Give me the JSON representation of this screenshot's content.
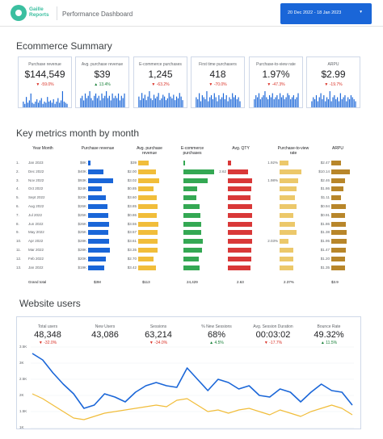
{
  "header": {
    "logo_line1": "Gaille",
    "logo_line2": "Reports",
    "title": "Performance Dashboard",
    "date_range": "20 Dec 2022 - 18 Jan 2023"
  },
  "ecommerce": {
    "title": "Ecommerce Summary",
    "kpis": [
      {
        "label": "Purchase revenue",
        "value": "$144,549",
        "delta": "-59.0%",
        "dir": "down",
        "spark": [
          5,
          3,
          9,
          4,
          6,
          12,
          4,
          3,
          5,
          7,
          4,
          6,
          8,
          3,
          5,
          4,
          9,
          5,
          6,
          4,
          7,
          3,
          5,
          8,
          4,
          6,
          14,
          5,
          4,
          3
        ]
      },
      {
        "label": "Avg. purchase revenue",
        "value": "$39",
        "delta": "13.4%",
        "dir": "up",
        "spark": [
          4,
          5,
          3,
          6,
          4,
          5,
          7,
          4,
          3,
          5,
          6,
          4,
          5,
          3,
          6,
          4,
          5,
          7,
          4,
          5,
          3,
          6,
          4,
          5,
          4,
          6,
          3,
          5,
          4,
          6
        ]
      },
      {
        "label": "E-commerce purchases",
        "value": "1,245",
        "delta": "-63.2%",
        "dir": "down",
        "spark": [
          6,
          4,
          8,
          5,
          7,
          4,
          6,
          9,
          5,
          4,
          7,
          5,
          6,
          8,
          4,
          5,
          7,
          6,
          4,
          5,
          8,
          6,
          5,
          7,
          4,
          6,
          5,
          8,
          6,
          4
        ]
      },
      {
        "label": "First time purchasers",
        "value": "418",
        "delta": "-70.0%",
        "dir": "down",
        "spark": [
          5,
          4,
          7,
          3,
          6,
          5,
          4,
          8,
          3,
          5,
          6,
          4,
          7,
          5,
          3,
          6,
          4,
          5,
          7,
          4,
          6,
          3,
          5,
          4,
          7,
          5,
          6,
          4,
          5,
          3
        ]
      },
      {
        "label": "Purchase-to-view rate",
        "value": "1.97%",
        "delta": "-47.3%",
        "dir": "down",
        "spark": [
          4,
          6,
          5,
          7,
          4,
          5,
          6,
          8,
          5,
          4,
          6,
          5,
          7,
          4,
          5,
          6,
          4,
          7,
          5,
          6,
          4,
          5,
          7,
          6,
          4,
          5,
          6,
          4,
          5,
          7
        ]
      },
      {
        "label": "ARPU",
        "value": "$2.99",
        "delta": "-19.7%",
        "dir": "down",
        "spark": [
          3,
          5,
          4,
          6,
          3,
          5,
          7,
          4,
          6,
          3,
          5,
          4,
          8,
          3,
          5,
          6,
          4,
          5,
          3,
          7,
          4,
          5,
          6,
          3,
          5,
          4,
          6,
          5,
          4,
          3
        ]
      }
    ]
  },
  "monthly": {
    "title": "Key metrics month by month",
    "headers": {
      "month": "Year Month",
      "rev": "Purchase revenue",
      "avg1": "Avg. purchase",
      "avg2": "revenue",
      "ecom1": "E-commerce",
      "ecom2": "purchases",
      "qty": "Avg. QTY",
      "ptv1": "Purchase-to-view",
      "ptv2": "rate",
      "arpu": "ARPU"
    },
    "rows": [
      {
        "i": "1.",
        "m": "Jan 2023",
        "rev": "$8K",
        "avg": "$39",
        "ecom": "",
        "qty": "",
        "ptv": "1.92%",
        "arpu": "$2.47",
        "b": [
          0.08,
          0.3,
          0.05,
          0.1,
          0.28,
          0.4
        ]
      },
      {
        "i": "2.",
        "m": "Dec 2022",
        "rev": "$40K",
        "avg": "$2.00",
        "ecom": "",
        "qty": "2.62",
        "ptv": "",
        "arpu": "$10.14",
        "b": [
          0.48,
          0.52,
          0.95,
          0.7,
          0.72,
          0.78
        ]
      },
      {
        "i": "3.",
        "m": "Nov 2022",
        "rev": "$93K",
        "avg": "$3.02",
        "ecom": "",
        "qty": "",
        "ptv": "1.98%",
        "arpu": "$2.46",
        "b": [
          0.78,
          0.62,
          0.75,
          0.82,
          0.6,
          0.55
        ]
      },
      {
        "i": "4.",
        "m": "Oct 2022",
        "rev": "$24K",
        "avg": "$0.85",
        "ecom": "",
        "qty": "",
        "ptv": "",
        "arpu": "$1.86",
        "b": [
          0.42,
          0.45,
          0.42,
          0.8,
          0.55,
          0.5
        ]
      },
      {
        "i": "5.",
        "m": "Sept 2022",
        "rev": "$20K",
        "avg": "$3.60",
        "ecom": "",
        "qty": "",
        "ptv": "",
        "arpu": "$1.11",
        "b": [
          0.55,
          0.55,
          0.4,
          0.78,
          0.5,
          0.4
        ]
      },
      {
        "i": "6.",
        "m": "Aug 2022",
        "rev": "$26K",
        "avg": "$3.85",
        "ecom": "",
        "qty": "",
        "ptv": "",
        "arpu": "$0.94",
        "b": [
          0.6,
          0.58,
          0.5,
          0.82,
          0.55,
          0.6
        ]
      },
      {
        "i": "7.",
        "m": "Jul 2022",
        "rev": "$25K",
        "avg": "$0.86",
        "ecom": "",
        "qty": "",
        "ptv": "",
        "arpu": "$0.91",
        "b": [
          0.62,
          0.55,
          0.52,
          0.82,
          0.45,
          0.58
        ]
      },
      {
        "i": "8.",
        "m": "Jun 2022",
        "rev": "$26K",
        "avg": "$3.55",
        "ecom": "",
        "qty": "",
        "ptv": "",
        "arpu": "$1.86",
        "b": [
          0.65,
          0.6,
          0.55,
          0.84,
          0.5,
          0.6
        ]
      },
      {
        "i": "9.",
        "m": "May 2022",
        "rev": "$25K",
        "avg": "$3.57",
        "ecom": "",
        "qty": "",
        "ptv": "",
        "arpu": "$1.38",
        "b": [
          0.62,
          0.58,
          0.55,
          0.82,
          0.55,
          0.62
        ]
      },
      {
        "i": "10.",
        "m": "Apr 2022",
        "rev": "$28K",
        "avg": "$3.61",
        "ecom": "",
        "qty": "",
        "ptv": "2.03%",
        "arpu": "$1.95",
        "b": [
          0.65,
          0.56,
          0.6,
          0.82,
          0.3,
          0.62
        ]
      },
      {
        "i": "11.",
        "m": "Mar 2022",
        "rev": "$28K",
        "avg": "$3.35",
        "ecom": "",
        "qty": "",
        "ptv": "",
        "arpu": "$1.47",
        "b": [
          0.68,
          0.58,
          0.58,
          0.8,
          0.45,
          0.6
        ]
      },
      {
        "i": "12.",
        "m": "Feb 2022",
        "rev": "$20K",
        "avg": "$2.70",
        "ecom": "",
        "qty": "",
        "ptv": "",
        "arpu": "$1.20",
        "b": [
          0.55,
          0.45,
          0.48,
          0.8,
          0.45,
          0.55
        ]
      },
      {
        "i": "13.",
        "m": "Jan 2022",
        "rev": "$19K",
        "avg": "$3.42",
        "ecom": "",
        "qty": "",
        "ptv": "",
        "arpu": "$1.35",
        "b": [
          0.5,
          0.52,
          0.5,
          0.78,
          0.45,
          0.55
        ]
      }
    ],
    "grand_total": {
      "label": "Grand total",
      "rev": "$3M",
      "avg": "$113",
      "ecom": "24,429",
      "qty": "2.63",
      "ptv": "2.37%",
      "arpu": "$3.9"
    },
    "colors": [
      "#1a66d8",
      "#f1bd3a",
      "#34a853",
      "#d93838",
      "#ecc86a",
      "#b8862a"
    ]
  },
  "users": {
    "title": "Website users",
    "kpis": [
      {
        "label": "Total users",
        "value": "48,348",
        "delta": "-32.0%",
        "dir": "down"
      },
      {
        "label": "New Users",
        "value": "43,086",
        "delta": "",
        "dir": "down"
      },
      {
        "label": "Sessions",
        "value": "63,214",
        "delta": "-34.0%",
        "dir": "down"
      },
      {
        "label": "% New Sessions",
        "value": "68%",
        "delta": "4.5%",
        "dir": "up"
      },
      {
        "label": "Avg. Session Duration",
        "value": "00:03:02",
        "delta": "-17.7%",
        "dir": "down"
      },
      {
        "label": "Bounce Rate",
        "value": "49.32%",
        "delta": "11.5%",
        "dir": "up"
      }
    ],
    "y_ticks": [
      "3.5K",
      "3K",
      "2.5K",
      "2K",
      "1.5K",
      "1K"
    ]
  },
  "chart_data": {
    "type": "line",
    "ylim": [
      1000,
      3500
    ],
    "series": [
      {
        "values": [
          3300,
          3100,
          2700,
          2350,
          2050,
          1600,
          1700,
          2050,
          1950,
          1800,
          2100,
          2300,
          2400,
          2300,
          2250,
          2850,
          2500,
          2150,
          2500,
          2400,
          2200,
          2300,
          2000,
          1950,
          2200,
          2100,
          1800,
          2100,
          2350,
          2150,
          2100,
          1700
        ]
      },
      {
        "values": [
          2050,
          1900,
          1700,
          1500,
          1300,
          1250,
          1350,
          1450,
          1500,
          1550,
          1600,
          1650,
          1700,
          1650,
          1850,
          1900,
          1700,
          1500,
          1550,
          1450,
          1550,
          1600,
          1500,
          1400,
          1550,
          1450,
          1350,
          1500,
          1600,
          1700,
          1600,
          1400
        ]
      }
    ],
    "colors": [
      "#1a66d8",
      "#f1bd3a"
    ]
  }
}
